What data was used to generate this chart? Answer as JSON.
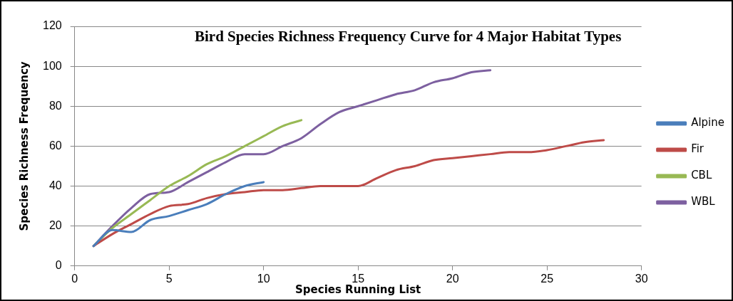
{
  "chart_data": {
    "type": "line",
    "title": "Bird Species Richness Frequency Curve for 4 Major Habitat Types",
    "xlabel": "Species Running List",
    "ylabel": "Species Richness Frequency",
    "xlim": [
      0,
      30
    ],
    "xticks": [
      0,
      5,
      10,
      15,
      20,
      25,
      30
    ],
    "ylim": [
      0,
      120
    ],
    "yticks": [
      0,
      20,
      40,
      60,
      80,
      100,
      120
    ],
    "grid": "y",
    "legend": "right",
    "marker": "none",
    "line_style": "solid",
    "series": [
      {
        "name": "Alpine",
        "color": "#4a7ebb",
        "x": [
          1,
          2,
          3,
          4,
          5,
          6,
          7,
          8,
          9,
          10
        ],
        "values": [
          10,
          18,
          17,
          23,
          25,
          28,
          31,
          36,
          40,
          42
        ]
      },
      {
        "name": "Fir",
        "color": "#be4b48",
        "x": [
          1,
          2,
          3,
          4,
          5,
          6,
          7,
          8,
          9,
          10,
          11,
          12,
          13,
          14,
          15,
          16,
          17,
          18,
          19,
          20,
          21,
          22,
          23,
          24,
          25,
          26,
          27,
          28
        ],
        "values": [
          10,
          16,
          21,
          26,
          30,
          31,
          34,
          36,
          37,
          38,
          38,
          39,
          40,
          40,
          40,
          44,
          48,
          50,
          53,
          54,
          55,
          56,
          57,
          57,
          58,
          60,
          62,
          63
        ]
      },
      {
        "name": "CBL",
        "color": "#98b954",
        "x": [
          1,
          2,
          3,
          4,
          5,
          6,
          7,
          8,
          9,
          10,
          11,
          12
        ],
        "values": [
          10,
          19,
          26,
          33,
          40,
          45,
          51,
          55,
          60,
          65,
          70,
          73
        ]
      },
      {
        "name": "WBL",
        "color": "#7d60a0",
        "x": [
          1,
          2,
          3,
          4,
          5,
          6,
          7,
          8,
          9,
          10,
          11,
          12,
          13,
          14,
          15,
          16,
          17,
          18,
          19,
          20,
          21,
          22
        ],
        "values": [
          10,
          20,
          29,
          36,
          37,
          42,
          47,
          52,
          56,
          56,
          60,
          64,
          71,
          77,
          80,
          83,
          86,
          88,
          92,
          94,
          97,
          98
        ]
      }
    ]
  }
}
